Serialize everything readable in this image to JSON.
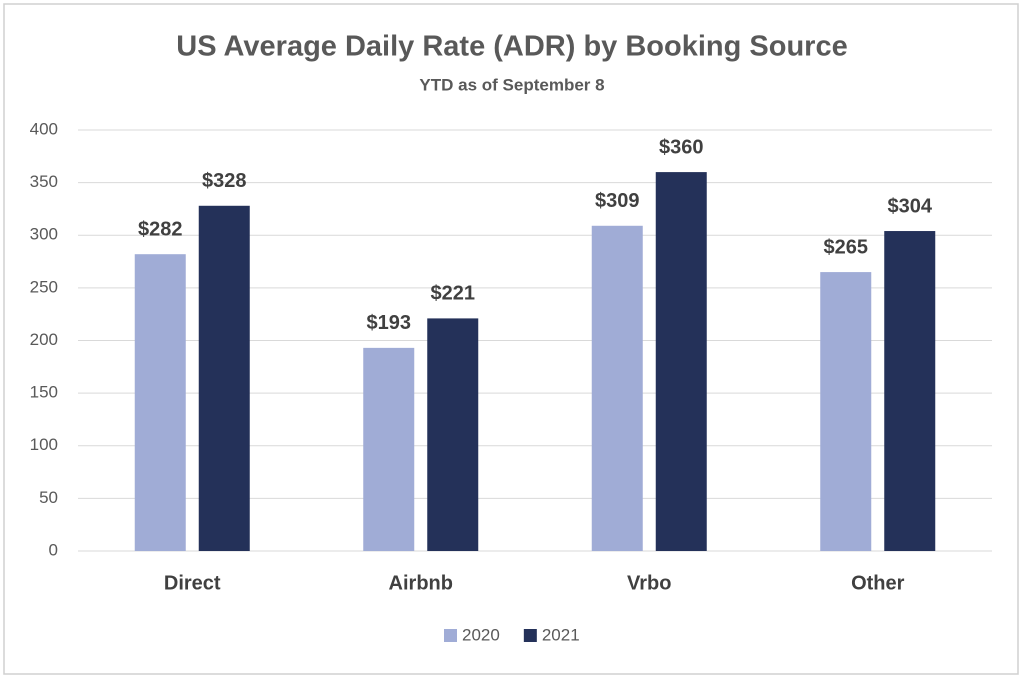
{
  "chart_data": {
    "type": "bar",
    "title": "US Average Daily Rate (ADR) by Booking Source",
    "subtitle": "YTD as of September 8",
    "categories": [
      "Direct",
      "Airbnb",
      "Vrbo",
      "Other"
    ],
    "series": [
      {
        "name": "2020",
        "color": "#a0acd6",
        "values": [
          282,
          193,
          309,
          265
        ],
        "value_labels": [
          "$282",
          "$193",
          "$309",
          "$265"
        ]
      },
      {
        "name": "2021",
        "color": "#243159",
        "values": [
          328,
          221,
          360,
          304
        ],
        "value_labels": [
          "$328",
          "$221",
          "$360",
          "$304"
        ]
      }
    ],
    "ylim": [
      0,
      400
    ],
    "yticks": [
      0,
      50,
      100,
      150,
      200,
      250,
      300,
      350,
      400
    ],
    "grid": true,
    "legend": "bottom"
  }
}
